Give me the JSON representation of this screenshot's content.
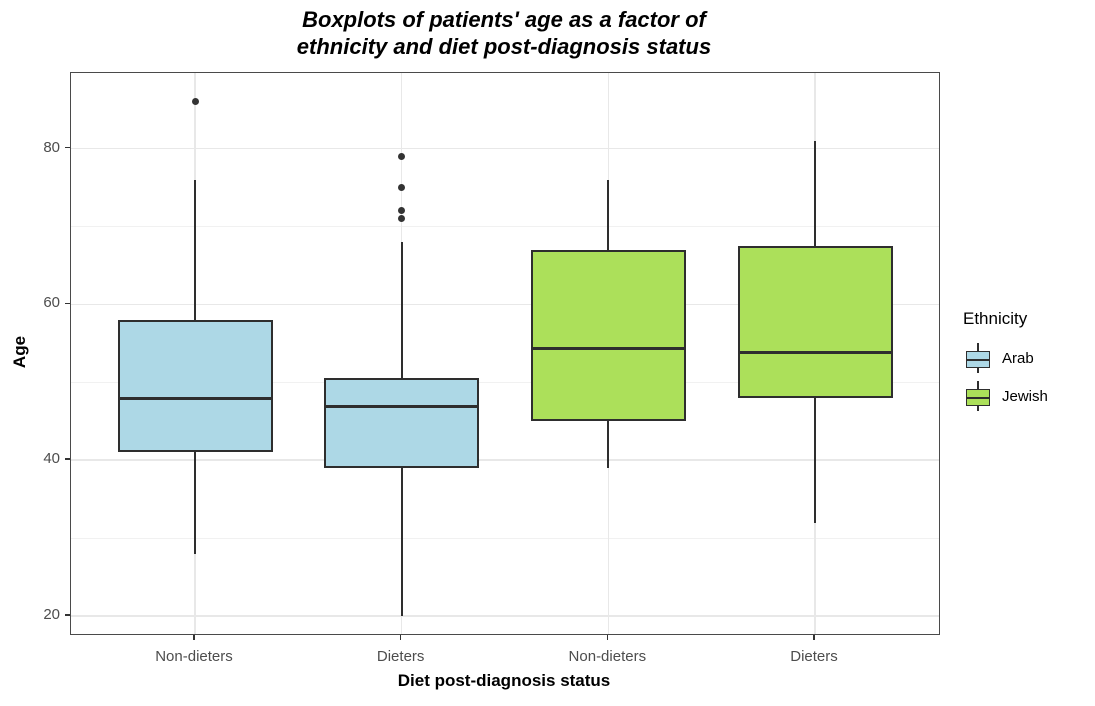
{
  "title": {
    "line1": "Boxplots of patients' age as a factor of",
    "line2": "ethnicity and diet post-diagnosis status"
  },
  "legend": {
    "title": "Ethnicity",
    "entries": [
      {
        "label": "Arab",
        "color": "#ADD8E6"
      },
      {
        "label": "Jewish",
        "color": "#ACE05A"
      }
    ]
  },
  "colors": {
    "box_border": "#2e2e2e",
    "median_line": "#2e2e2e",
    "outlier_dot": "#333333",
    "panel_border": "#4a4a4a",
    "grid_major": "#e8e8e8",
    "grid_minor": "#f1f1f1",
    "axis_text": "#4d4d4d"
  },
  "chart_data": {
    "type": "boxplot",
    "title": "Boxplots of patients' age as a factor of ethnicity and diet post-diagnosis status",
    "xlabel": "Diet post-diagnosis status",
    "ylabel": "Age",
    "ylim": [
      17.7,
      89.7
    ],
    "yticks": [
      20,
      40,
      60,
      80
    ],
    "yticks_minor": [
      30,
      50,
      70
    ],
    "grid": true,
    "legend_position": "right",
    "categories": [
      "Non-dieters",
      "Dieters",
      "Non-dieters",
      "Dieters"
    ],
    "boxes": [
      {
        "category": "Non-dieters",
        "group": "Arab",
        "low": 28,
        "q1": 41,
        "median": 48,
        "q3": 58,
        "high": 76,
        "outliers": [
          86
        ]
      },
      {
        "category": "Dieters",
        "group": "Arab",
        "low": 20,
        "q1": 39,
        "median": 47,
        "q3": 50.5,
        "high": 68,
        "outliers": [
          79,
          75,
          72,
          71
        ]
      },
      {
        "category": "Non-dieters",
        "group": "Jewish",
        "low": 39,
        "q1": 45,
        "median": 54.5,
        "q3": 67,
        "high": 76,
        "outliers": []
      },
      {
        "category": "Dieters",
        "group": "Jewish",
        "low": 32,
        "q1": 48,
        "median": 54,
        "q3": 67.5,
        "high": 81,
        "outliers": []
      }
    ]
  }
}
